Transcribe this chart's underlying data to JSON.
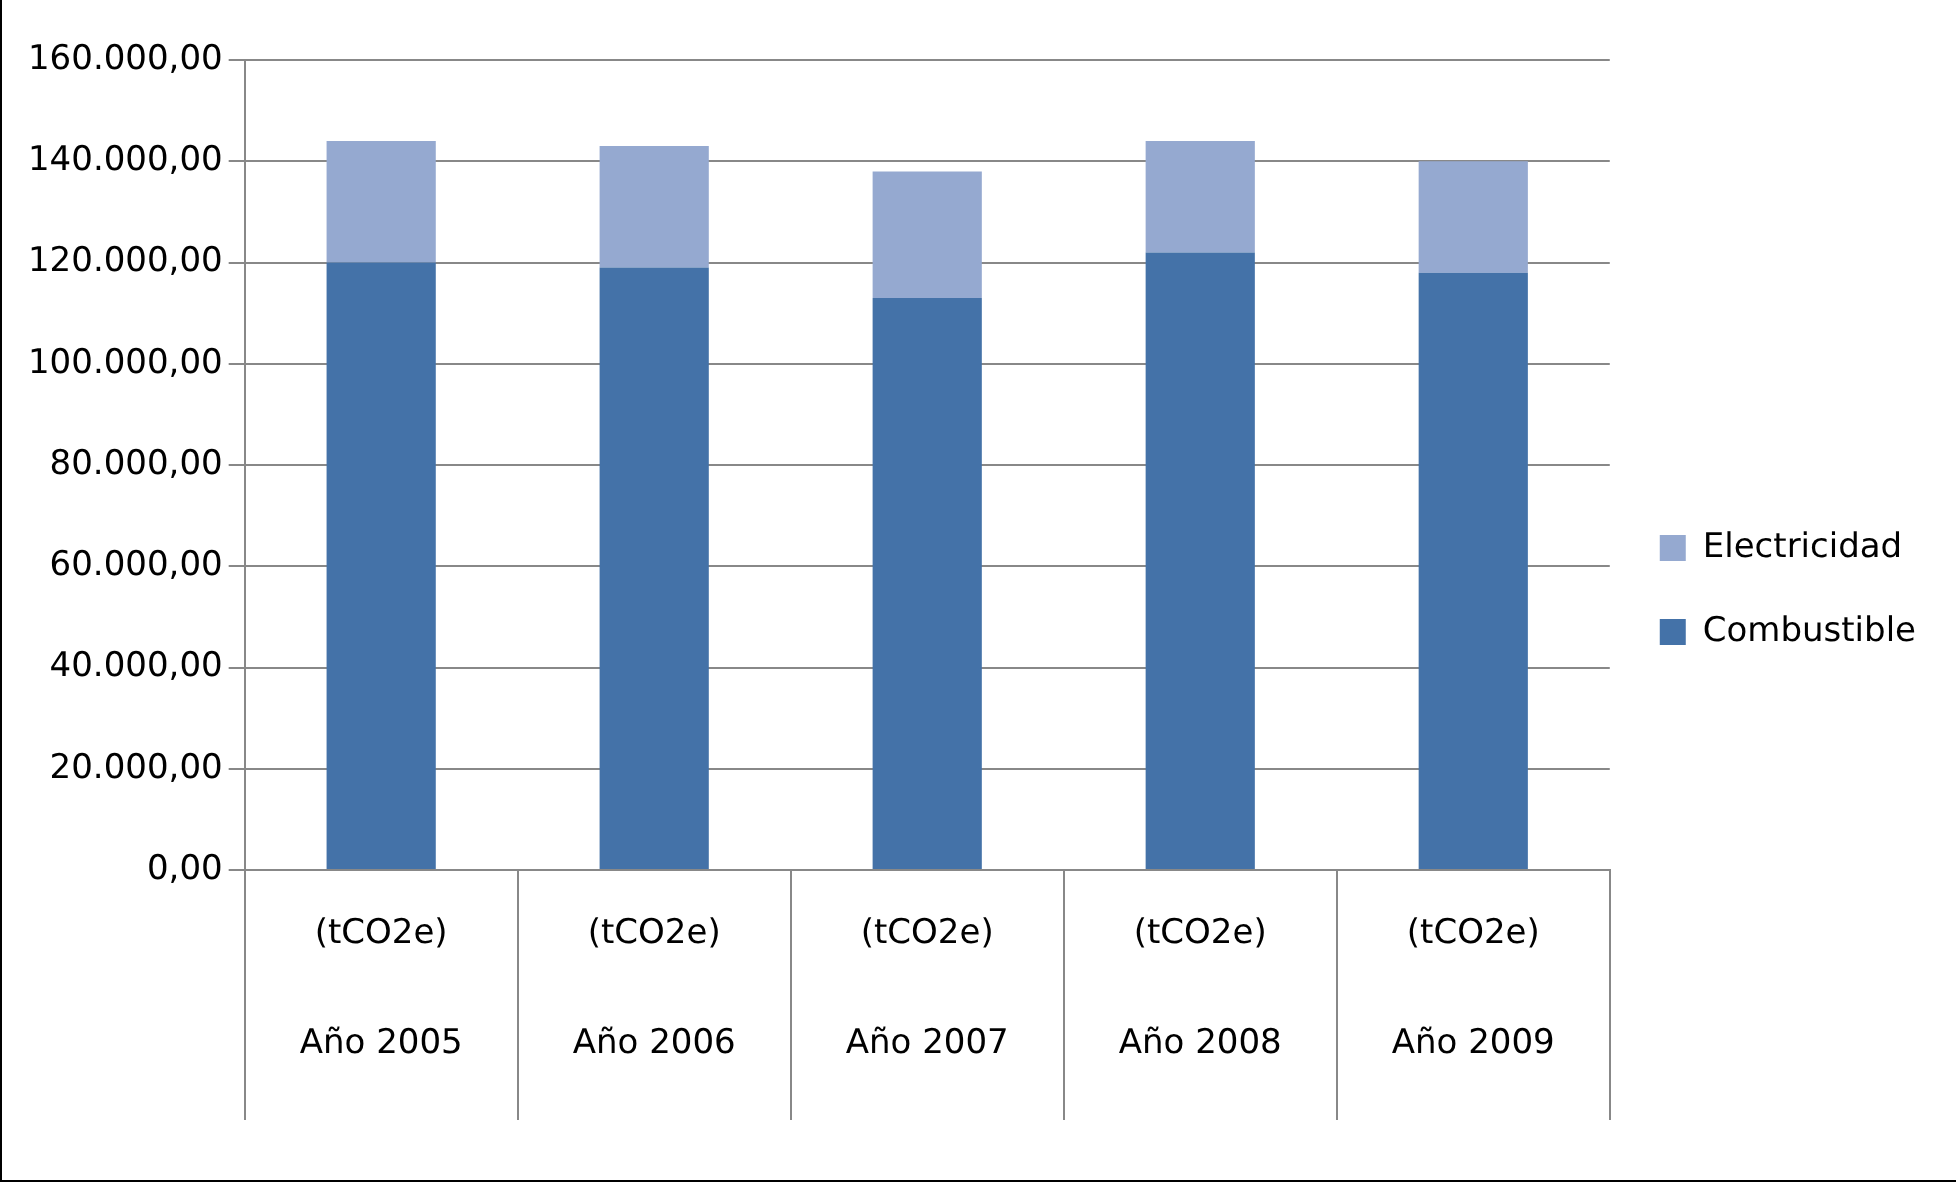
{
  "chart_data": {
    "type": "bar",
    "stacked": true,
    "categories": [
      "(tCO2e)\nAño 2005",
      "(tCO2e)\nAño 2006",
      "(tCO2e)\nAño 2007",
      "(tCO2e)\nAño 2008",
      "(tCO2e)\nAño 2009"
    ],
    "series": [
      {
        "name": "Combustible",
        "color": "#4472a8",
        "values": [
          120000,
          119000,
          113000,
          122000,
          118000
        ]
      },
      {
        "name": "Electricidad",
        "color": "#95a9d0",
        "values": [
          24000,
          24000,
          25000,
          22000,
          22000
        ]
      }
    ],
    "ylim": [
      0,
      160000
    ],
    "yticks": [
      {
        "value": 0,
        "label": "0,00"
      },
      {
        "value": 20000,
        "label": "20.000,00"
      },
      {
        "value": 40000,
        "label": "40.000,00"
      },
      {
        "value": 60000,
        "label": "60.000,00"
      },
      {
        "value": 80000,
        "label": "80.000,00"
      },
      {
        "value": 100000,
        "label": "100.000,00"
      },
      {
        "value": 120000,
        "label": "120.000,00"
      },
      {
        "value": 140000,
        "label": "140.000,00"
      },
      {
        "value": 160000,
        "label": "160.000,00"
      }
    ],
    "grid": "y",
    "legend": "right"
  }
}
